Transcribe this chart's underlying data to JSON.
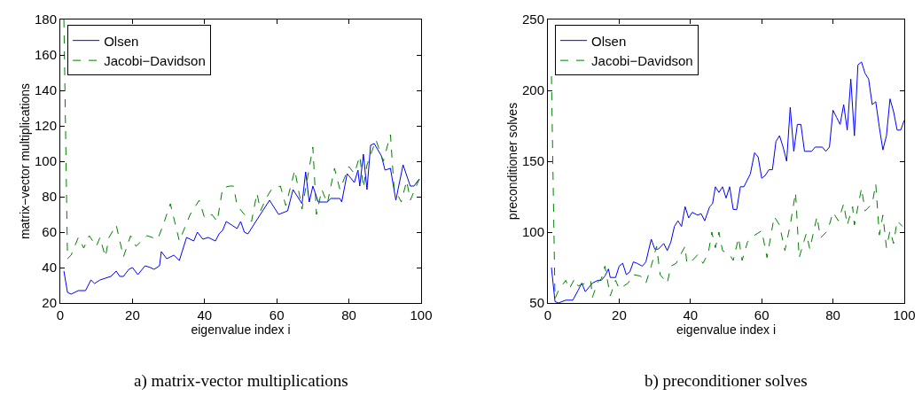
{
  "chart_data": [
    {
      "type": "line",
      "xlabel": "eigenvalue index i",
      "ylabel": "matrix−vector multiplications",
      "annotations": [
        "a) matrix-vector multiplications"
      ],
      "xlim": [
        0,
        100
      ],
      "xticks": [
        0,
        20,
        40,
        60,
        80,
        100
      ],
      "ylim": [
        20,
        180
      ],
      "yticks": [
        20,
        40,
        60,
        80,
        100,
        120,
        140,
        160,
        180
      ],
      "legend": "top left",
      "series": [
        {
          "name": "Olsen",
          "color": "#0000ff",
          "line_style": "solid",
          "x": [
            1,
            2,
            3,
            5,
            7,
            8.5,
            9.5,
            11,
            12.5,
            14,
            15.5,
            16.5,
            17.5,
            19,
            20,
            21.5,
            23.5,
            25,
            26,
            27.5,
            28,
            29.5,
            31.5,
            33,
            35,
            37,
            38,
            39.5,
            41,
            43,
            44,
            45,
            46,
            47.5,
            49,
            50,
            51,
            52,
            54.5,
            58,
            60.5,
            63,
            64.5,
            67,
            68,
            69,
            70,
            71.5,
            74,
            75,
            77.5,
            78,
            79.5,
            81.5,
            82.5,
            83,
            84,
            85,
            86,
            87,
            89,
            90,
            91.5,
            93,
            95,
            97,
            98,
            99.5
          ],
          "values": [
            38,
            26,
            25,
            27,
            27,
            33,
            31,
            33,
            34,
            35,
            38,
            35,
            35,
            39,
            40,
            36,
            41,
            40,
            39,
            41,
            49,
            45,
            47,
            44,
            57,
            55,
            60,
            56,
            57,
            55,
            59,
            61,
            66,
            64,
            62,
            66,
            60,
            59,
            67,
            78,
            70,
            72,
            84,
            76,
            94,
            77,
            86,
            77,
            77,
            79,
            79,
            77,
            93,
            88,
            95,
            86,
            104,
            84,
            109,
            110,
            103,
            95,
            96,
            78,
            98,
            86,
            86,
            90
          ]
        },
        {
          "name": "Jacobi−Davidson",
          "color": "#008000",
          "line_style": "dashed",
          "x": [
            1,
            2,
            3,
            5,
            6.5,
            8,
            10,
            11,
            12.5,
            13.5,
            15.5,
            17.5,
            19.5,
            21,
            24,
            27,
            28.5,
            30.5,
            33,
            36,
            38.5,
            40,
            42,
            43.5,
            45,
            47,
            48,
            49,
            51,
            53,
            54.5,
            55.5,
            57,
            58.5,
            61,
            62.5,
            65,
            67,
            70,
            71,
            72.5,
            74,
            76,
            77.5,
            80,
            81.5,
            83,
            84,
            85,
            87.5,
            89.5,
            91.5,
            92.5,
            94.5,
            96,
            97,
            99.5
          ],
          "values": [
            180,
            45,
            47,
            57,
            51,
            58,
            52,
            57,
            46,
            57,
            64,
            46,
            58,
            52,
            58,
            56,
            64,
            76,
            55,
            70,
            78,
            68,
            70,
            66,
            85,
            86,
            86,
            75,
            70,
            66,
            82,
            72,
            79,
            84,
            86,
            75,
            95,
            73,
            108,
            70,
            84,
            76,
            96,
            84,
            97,
            93,
            103,
            85,
            98,
            112,
            100,
            115,
            85,
            77,
            89,
            78,
            90
          ]
        }
      ]
    },
    {
      "type": "line",
      "xlabel": "eigenvalue index i",
      "ylabel": "preconditioner solves",
      "annotations": [
        "b) preconditioner solves"
      ],
      "xlim": [
        0,
        100
      ],
      "xticks": [
        0,
        20,
        40,
        60,
        80,
        100
      ],
      "ylim": [
        50,
        250
      ],
      "yticks": [
        50,
        100,
        150,
        200,
        250
      ],
      "legend": "top left",
      "series": [
        {
          "name": "Olsen",
          "color": "#0000ff",
          "line_style": "solid",
          "x": [
            1,
            2,
            3,
            5,
            7,
            8.5,
            9.5,
            10.5,
            12.5,
            14,
            15,
            16,
            17,
            17.5,
            19,
            20,
            21,
            22,
            23,
            24,
            25,
            26.5,
            27.5,
            29,
            30,
            31,
            32.5,
            33.5,
            34.5,
            35.5,
            36.5,
            37.5,
            38.5,
            39.5,
            40.5,
            42,
            43,
            44,
            45.4,
            46.2,
            47,
            48,
            49,
            50,
            51,
            52,
            53,
            54,
            55,
            56.8,
            58,
            59,
            60,
            61,
            62,
            63,
            64,
            65,
            66,
            67,
            68,
            69,
            70,
            71,
            72,
            74,
            75,
            77,
            78,
            79,
            80,
            81,
            82,
            83,
            84,
            85,
            86,
            87,
            88,
            89,
            90,
            91,
            92,
            93,
            94,
            95,
            96,
            97,
            98,
            99,
            100
          ],
          "values": [
            75,
            51,
            50,
            52,
            52,
            59,
            64,
            58,
            64,
            66,
            66,
            69,
            74,
            68,
            68,
            76,
            78,
            70,
            72,
            79,
            78,
            76,
            79,
            95,
            88,
            88,
            92,
            87,
            93,
            104,
            108,
            104,
            118,
            110,
            114,
            112,
            113,
            108,
            118,
            120,
            132,
            128,
            132,
            124,
            132,
            116,
            116,
            132,
            132,
            141,
            156,
            153,
            138,
            140,
            144,
            144,
            164,
            168,
            160,
            150,
            188,
            157,
            176,
            176,
            157,
            157,
            160,
            160,
            157,
            160,
            186,
            181,
            176,
            190,
            172,
            208,
            168,
            218,
            220,
            212,
            208,
            190,
            192,
            174,
            158,
            168,
            194,
            185,
            172,
            172,
            179
          ]
        },
        {
          "name": "Jacobi−Davidson",
          "color": "#008000",
          "line_style": "dashed",
          "x": [
            1,
            2,
            3,
            5,
            6,
            7.5,
            8.5,
            10.5,
            12,
            12.5,
            14,
            15,
            16,
            17.5,
            19,
            20,
            22.5,
            24,
            26,
            27.5,
            29,
            30.5,
            31.5,
            33.5,
            34.5,
            36,
            37,
            38.5,
            39,
            40.5,
            42,
            43.5,
            45,
            46,
            47,
            48,
            49,
            51,
            52,
            53.5,
            54.5,
            56,
            57.5,
            60,
            61.5,
            63.5,
            65,
            66.5,
            68,
            69.5,
            70.5,
            72.5,
            73.5,
            75.5,
            76.5,
            78.5,
            80,
            81.5,
            83,
            84,
            85.5,
            86,
            88,
            89,
            91,
            92,
            93,
            94,
            95,
            96,
            97,
            98,
            99.5
          ],
          "values": [
            210,
            53,
            59,
            66,
            60,
            67,
            62,
            64,
            66,
            54,
            65,
            67,
            76,
            55,
            66,
            60,
            64,
            70,
            69,
            64,
            76,
            90,
            70,
            64,
            76,
            78,
            83,
            90,
            78,
            80,
            84,
            78,
            85,
            100,
            89,
            100,
            87,
            84,
            80,
            96,
            80,
            93,
            97,
            101,
            82,
            111,
            105,
            87,
            105,
            128,
            82,
            99,
            88,
            111,
            96,
            101,
            114,
            108,
            120,
            105,
            118,
            105,
            131,
            115,
            120,
            134,
            98,
            112,
            89,
            101,
            92,
            108,
            104
          ]
        }
      ]
    }
  ]
}
